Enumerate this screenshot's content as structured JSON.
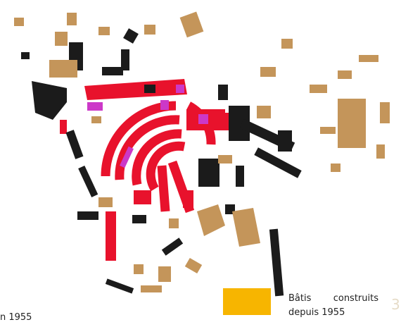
{
  "map": {
    "cut_label": "n 1955",
    "page_number": "3",
    "legend": {
      "label_lines": [
        "Bâtis construits",
        "depuis 1955"
      ]
    }
  }
}
